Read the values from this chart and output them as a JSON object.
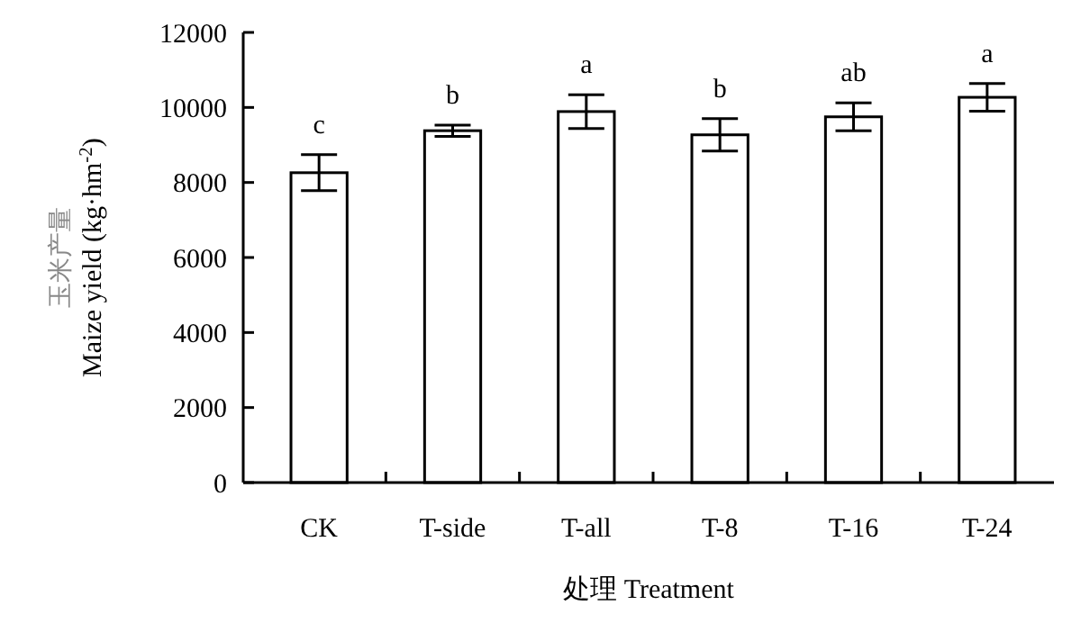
{
  "chart_data": {
    "type": "bar",
    "xlabel": "处理 Treatment",
    "ylabel": "玉米产量\nMaize yield (kg·hm$^{-2}$)",
    "categories": [
      "CK",
      "T-side",
      "T-all",
      "T-8",
      "T-16",
      "T-24"
    ],
    "values": [
      8260,
      9380,
      9890,
      9270,
      9750,
      10270
    ],
    "errors": [
      480,
      150,
      450,
      430,
      370,
      370
    ],
    "color": "#ffffff",
    "ylim": [
      0,
      12000
    ],
    "yticks": [
      0,
      2000,
      4000,
      6000,
      8000,
      10000,
      12000
    ],
    "grid": false,
    "annotations": [
      "c",
      "b",
      "a",
      "b",
      "ab",
      "a"
    ]
  }
}
